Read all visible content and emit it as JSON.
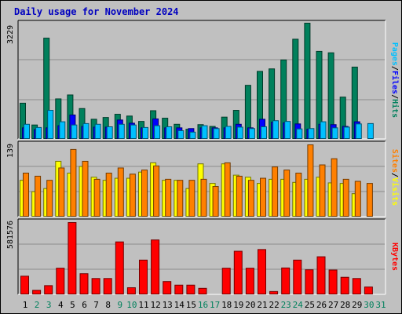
{
  "title": "Daily usage for November 2024",
  "colors": {
    "hits": "#00805c",
    "files": "#0000ff",
    "pages": "#00c0ff",
    "visits": "#ffff00",
    "sites": "#ff8000",
    "kbytes": "#ff0000",
    "weekday_label": "#000000",
    "weekend_label": "#00805c"
  },
  "chart_data": [
    {
      "type": "bar",
      "ylabel": "3229",
      "ylim": [
        0,
        3229
      ],
      "legend": [
        "Pages",
        "Files",
        "Hits"
      ],
      "categories": [
        "1",
        "2",
        "3",
        "4",
        "5",
        "6",
        "7",
        "8",
        "9",
        "10",
        "11",
        "12",
        "13",
        "14",
        "15",
        "16",
        "17",
        "18",
        "19",
        "20",
        "21",
        "22",
        "23",
        "24",
        "25",
        "26",
        "27",
        "28",
        "29",
        "30",
        "31"
      ],
      "weekend_days": [
        "2",
        "3",
        "9",
        "10",
        "16",
        "17",
        "23",
        "24",
        "30",
        "31"
      ],
      "series": [
        {
          "name": "Hits",
          "values": [
            990,
            380,
            2810,
            1110,
            1220,
            840,
            540,
            590,
            680,
            630,
            480,
            780,
            570,
            400,
            260,
            390,
            340,
            600,
            790,
            1490,
            1880,
            1950,
            2200,
            2780,
            3229,
            2440,
            2400,
            1160,
            2000,
            0,
            0
          ]
        },
        {
          "name": "Files",
          "values": [
            300,
            250,
            300,
            360,
            660,
            340,
            320,
            320,
            520,
            430,
            300,
            550,
            300,
            300,
            280,
            300,
            300,
            300,
            400,
            300,
            540,
            460,
            440,
            410,
            260,
            400,
            390,
            340,
            470,
            0,
            0
          ]
        },
        {
          "name": "Pages",
          "values": [
            400,
            310,
            790,
            470,
            380,
            420,
            400,
            330,
            400,
            380,
            310,
            360,
            330,
            220,
            180,
            360,
            280,
            340,
            320,
            280,
            330,
            500,
            480,
            270,
            280,
            470,
            300,
            320,
            410,
            420,
            0
          ]
        }
      ]
    },
    {
      "type": "bar",
      "ylabel": "139",
      "ylim": [
        0,
        139
      ],
      "legend": [
        "Sites",
        "Visits"
      ],
      "categories": [
        "1",
        "2",
        "3",
        "4",
        "5",
        "6",
        "7",
        "8",
        "9",
        "10",
        "11",
        "12",
        "13",
        "14",
        "15",
        "16",
        "17",
        "18",
        "19",
        "20",
        "21",
        "22",
        "23",
        "24",
        "25",
        "26",
        "27",
        "28",
        "29",
        "30",
        "31"
      ],
      "series": [
        {
          "name": "Visits",
          "values": [
            70,
            48,
            54,
            107,
            84,
            97,
            76,
            70,
            74,
            74,
            86,
            104,
            70,
            70,
            54,
            102,
            64,
            102,
            80,
            76,
            64,
            72,
            72,
            66,
            72,
            76,
            65,
            64,
            44,
            0,
            0
          ]
        },
        {
          "name": "Sites",
          "values": [
            84,
            78,
            70,
            94,
            130,
            107,
            72,
            84,
            94,
            82,
            90,
            98,
            72,
            70,
            70,
            72,
            58,
            104,
            78,
            70,
            74,
            96,
            90,
            84,
            139,
            100,
            112,
            72,
            68,
            64,
            0
          ]
        }
      ]
    },
    {
      "type": "bar",
      "ylabel": "581576",
      "ylim": [
        0,
        581576
      ],
      "legend": [
        "KBytes"
      ],
      "categories": [
        "1",
        "2",
        "3",
        "4",
        "5",
        "6",
        "7",
        "8",
        "9",
        "10",
        "11",
        "12",
        "13",
        "14",
        "15",
        "16",
        "17",
        "18",
        "19",
        "20",
        "21",
        "22",
        "23",
        "24",
        "25",
        "26",
        "27",
        "28",
        "29",
        "30",
        "31"
      ],
      "series": [
        {
          "name": "KBytes",
          "values": [
            145000,
            30000,
            68000,
            210000,
            581576,
            165000,
            126000,
            126000,
            424000,
            51000,
            276000,
            440000,
            101000,
            72000,
            72000,
            46000,
            0,
            210000,
            348000,
            210000,
            362000,
            20000,
            212000,
            276000,
            197000,
            303000,
            195000,
            136000,
            126000,
            57000,
            0
          ]
        }
      ]
    }
  ]
}
